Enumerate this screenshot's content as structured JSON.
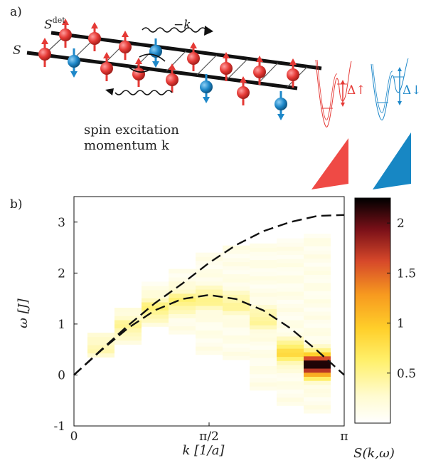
{
  "panel_a": {
    "label": "a)",
    "s_det": "S",
    "s_det_sup": "det",
    "s": "S",
    "neg_k": "−k",
    "caption_line1": "spin excitation",
    "caption_line2": "momentum k",
    "delta_up": "Δ↑",
    "delta_down": "Δ↓",
    "colors": {
      "up": "#e53935",
      "down": "#1e88c9",
      "chain": "#111111"
    }
  },
  "panel_b": {
    "label": "b)",
    "colorbar_label": "S(k,ω)",
    "colorbar_ticks": [
      "2",
      "1.5",
      "1",
      "0.5"
    ],
    "colorbar_ticks_values": [
      2,
      1.5,
      1,
      0.5
    ],
    "colorbar_range": [
      0,
      2.25
    ]
  },
  "chart_data": {
    "type": "heatmap",
    "xlabel": "k [1/a]",
    "ylabel": "ω [J]",
    "xlim": [
      0,
      3.1416
    ],
    "ylim": [
      -1,
      3.5
    ],
    "x_tick_labels": [
      "0",
      "π/2",
      "π"
    ],
    "x_tick_values": [
      0,
      1.5708,
      3.1416
    ],
    "y_tick_labels": [
      "-1",
      "0",
      "1",
      "2",
      "3"
    ],
    "y_tick_values": [
      -1,
      0,
      1,
      2,
      3
    ],
    "k_columns": [
      0.314,
      0.628,
      0.942,
      1.257,
      1.571,
      1.885,
      2.199,
      2.513,
      2.827,
      3.142
    ],
    "columns": [
      {
        "k": 0.314,
        "omega_range": [
          0.35,
          0.85
        ],
        "peak": 0.55,
        "peak_value": 0.25
      },
      {
        "k": 0.628,
        "omega_range": [
          0.6,
          1.3
        ],
        "peak": 0.95,
        "peak_value": 0.35
      },
      {
        "k": 0.942,
        "omega_range": [
          0.95,
          1.85
        ],
        "peak": 1.3,
        "peak_value": 0.45
      },
      {
        "k": 1.257,
        "omega_range": [
          0.8,
          2.1
        ],
        "peak": 1.45,
        "peak_value": 0.45
      },
      {
        "k": 1.571,
        "omega_range": [
          0.4,
          2.4
        ],
        "peak": 1.5,
        "peak_value": 0.4
      },
      {
        "k": 1.885,
        "omega_range": [
          0.3,
          2.5
        ],
        "peak": 1.4,
        "peak_value": 0.35
      },
      {
        "k": 2.199,
        "omega_range": [
          -0.3,
          2.6
        ],
        "peak": 1.1,
        "peak_value": 0.35
      },
      {
        "k": 2.513,
        "omega_range": [
          -0.6,
          2.7
        ],
        "peak": 0.45,
        "peak_value": 0.7
      },
      {
        "k": 2.827,
        "omega_range": [
          -0.75,
          2.75
        ],
        "peak": 0.2,
        "peak_value": 2.1
      }
    ],
    "series": [
      {
        "x": [
          0,
          0.314,
          0.628,
          0.942,
          1.257,
          1.571,
          1.885,
          2.199,
          2.513,
          2.827,
          3.142
        ],
        "y": [
          0,
          0.49,
          0.97,
          1.41,
          1.79,
          2.2,
          2.55,
          2.82,
          3.0,
          3.12,
          3.14
        ]
      },
      {
        "x": [
          0,
          0.314,
          0.628,
          0.942,
          1.257,
          1.571,
          1.885,
          2.199,
          2.513,
          2.827,
          3.142
        ],
        "y": [
          0,
          0.48,
          0.92,
          1.27,
          1.49,
          1.57,
          1.49,
          1.27,
          0.92,
          0.48,
          0.0
        ]
      }
    ],
    "grid": false
  }
}
